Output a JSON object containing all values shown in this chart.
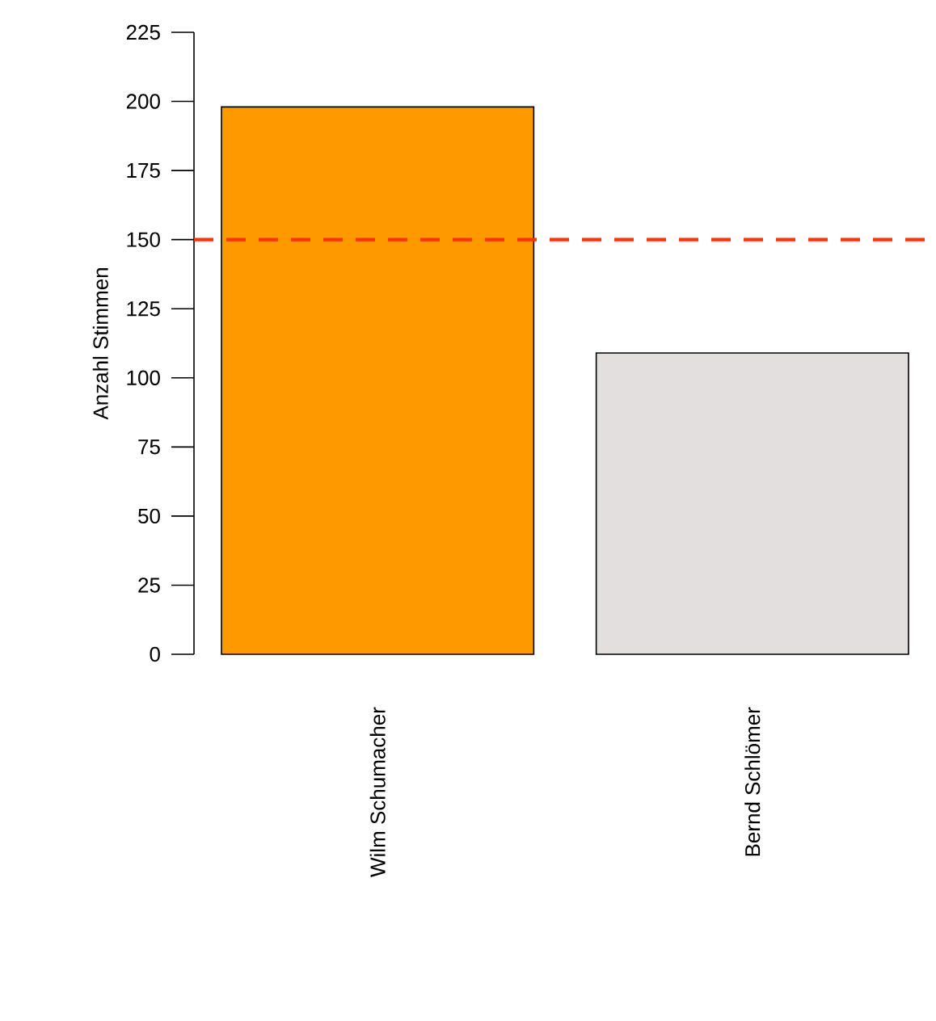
{
  "chart_data": {
    "type": "bar",
    "ylabel": "Anzahl Stimmen",
    "categories": [
      "Wilm Schumacher",
      "Bernd Schlömer"
    ],
    "values": [
      198,
      109
    ],
    "colors": [
      "#ff9900",
      "#e3dfdf"
    ],
    "ylim": [
      0,
      225
    ],
    "yticks": [
      0,
      25,
      50,
      75,
      100,
      125,
      150,
      175,
      200,
      225
    ],
    "ref_lines": [
      {
        "axis": "y",
        "value": 150,
        "color": "#ff3300",
        "line_style": "dashed"
      }
    ]
  }
}
